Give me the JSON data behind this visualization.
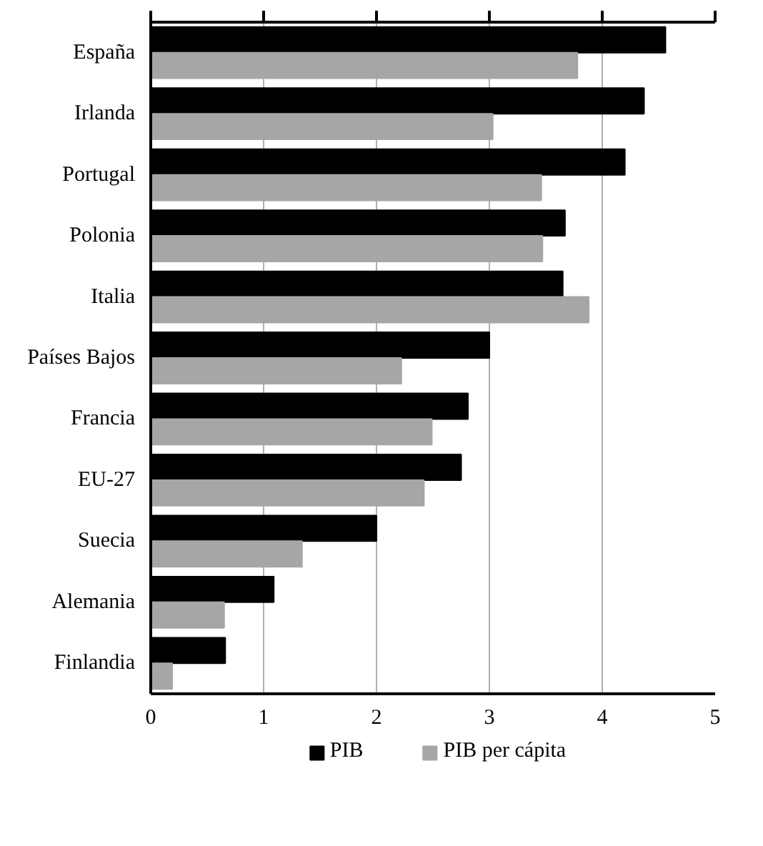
{
  "chart_data": {
    "type": "bar",
    "orientation": "horizontal",
    "categories": [
      "España",
      "Irlanda",
      "Portugal",
      "Polonia",
      "Italia",
      "Países Bajos",
      "Francia",
      "EU-27",
      "Suecia",
      "Alemania",
      "Finlandia"
    ],
    "series": [
      {
        "name": "PIB",
        "color": "#000000",
        "values": [
          4.56,
          4.37,
          4.2,
          3.67,
          3.65,
          3.0,
          2.81,
          2.75,
          2.0,
          1.09,
          0.66
        ]
      },
      {
        "name": "PIB per cápita",
        "color": "#a6a6a6",
        "values": [
          3.78,
          3.03,
          3.46,
          3.47,
          3.88,
          2.22,
          2.49,
          2.42,
          1.34,
          0.65,
          0.19
        ]
      }
    ],
    "xlim": [
      0,
      5
    ],
    "xticks": [
      0,
      1,
      2,
      3,
      4,
      5
    ],
    "grid": "x",
    "legend": "bottom"
  }
}
